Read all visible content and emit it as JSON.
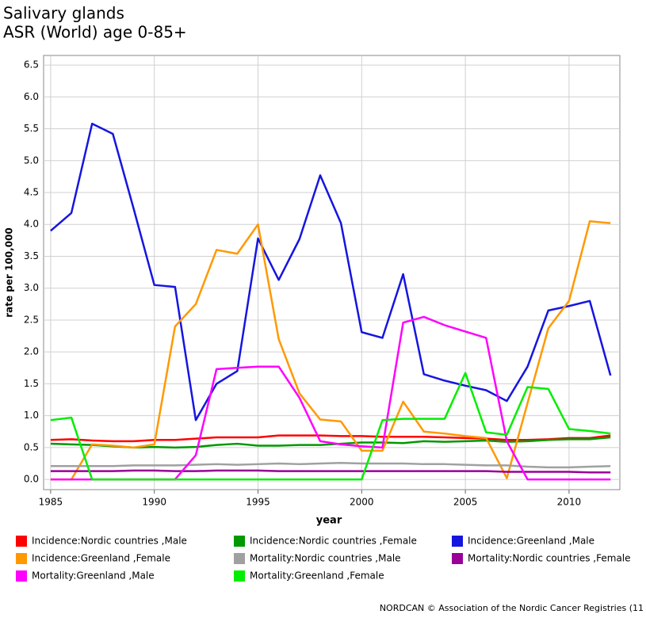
{
  "chart_data": {
    "type": "line",
    "title": "Salivary glands",
    "subtitle": "ASR (World) age 0-85+",
    "x_label": "year",
    "y_label": "rate per 100,000",
    "footer": "NORDCAN © Association of the Nordic Cancer Registries (11",
    "x": [
      1985,
      1986,
      1987,
      1988,
      1989,
      1990,
      1991,
      1992,
      1993,
      1994,
      1995,
      1996,
      1997,
      1998,
      1999,
      2000,
      2001,
      2002,
      2003,
      2004,
      2005,
      2006,
      2007,
      2008,
      2009,
      2010,
      2011,
      2012
    ],
    "xlim": [
      1984.66,
      2012.45
    ],
    "xticks": [
      1985,
      1990,
      1995,
      2000,
      2005,
      2010
    ],
    "ylim": [
      -0.16,
      6.65
    ],
    "yticks": [
      {
        "value": 0,
        "label": "0.0"
      },
      0.5,
      {
        "value": 1,
        "label": "1.0"
      },
      1.5,
      {
        "value": 2,
        "label": "2.0"
      },
      2.5,
      {
        "value": 3,
        "label": "3.0"
      },
      3.5,
      {
        "value": 4,
        "label": "4.0"
      },
      4.5,
      {
        "value": 5,
        "label": "5.0"
      },
      5.5,
      {
        "value": 6,
        "label": "6.0"
      },
      6.5
    ],
    "grid": true,
    "legend": "bottom",
    "series": [
      {
        "name": "Incidence:Nordic countries ,Male",
        "color": "#ff0000",
        "values": [
          0.62,
          0.63,
          0.61,
          0.6,
          0.6,
          0.62,
          0.62,
          0.64,
          0.66,
          0.66,
          0.66,
          0.69,
          0.69,
          0.69,
          0.68,
          0.68,
          0.67,
          0.67,
          0.67,
          0.66,
          0.65,
          0.64,
          0.62,
          0.62,
          0.63,
          0.65,
          0.65,
          0.69
        ]
      },
      {
        "name": "Incidence:Nordic countries ,Female",
        "color": "#009900",
        "values": [
          0.56,
          0.55,
          0.54,
          0.52,
          0.5,
          0.51,
          0.5,
          0.51,
          0.54,
          0.56,
          0.53,
          0.53,
          0.54,
          0.54,
          0.56,
          0.58,
          0.58,
          0.57,
          0.6,
          0.59,
          0.6,
          0.61,
          0.59,
          0.6,
          0.62,
          0.63,
          0.63,
          0.66
        ]
      },
      {
        "name": "Incidence:Greenland ,Male",
        "color": "#1515e0",
        "values": [
          3.9,
          4.18,
          5.58,
          5.42,
          4.25,
          3.05,
          3.02,
          0.93,
          1.5,
          1.7,
          3.78,
          3.13,
          3.77,
          4.77,
          4.02,
          2.31,
          2.22,
          3.22,
          1.65,
          1.55,
          1.47,
          1.4,
          1.23,
          1.77,
          2.65,
          2.72,
          2.8,
          1.63
        ]
      },
      {
        "name": "Incidence:Greenland ,Female",
        "color": "#ff9900",
        "values": [
          0,
          0,
          0.55,
          0.53,
          0.5,
          0.55,
          2.4,
          2.75,
          3.6,
          3.54,
          4.0,
          2.2,
          1.35,
          0.94,
          0.91,
          0.45,
          0.45,
          1.22,
          0.75,
          0.72,
          0.68,
          0.65,
          0.02,
          1.2,
          2.37,
          2.8,
          4.05,
          4.02
        ]
      },
      {
        "name": "Mortality:Nordic countries ,Male",
        "color": "#a0a0a0",
        "values": [
          0.21,
          0.21,
          0.21,
          0.21,
          0.22,
          0.22,
          0.22,
          0.23,
          0.24,
          0.23,
          0.24,
          0.25,
          0.24,
          0.25,
          0.26,
          0.25,
          0.25,
          0.25,
          0.24,
          0.24,
          0.23,
          0.22,
          0.22,
          0.2,
          0.19,
          0.19,
          0.2,
          0.21
        ]
      },
      {
        "name": "Mortality:Nordic countries ,Female",
        "color": "#990099",
        "values": [
          0.13,
          0.13,
          0.13,
          0.13,
          0.14,
          0.14,
          0.13,
          0.13,
          0.14,
          0.14,
          0.14,
          0.13,
          0.13,
          0.13,
          0.13,
          0.13,
          0.13,
          0.13,
          0.13,
          0.13,
          0.13,
          0.13,
          0.12,
          0.12,
          0.12,
          0.12,
          0.11,
          0.11
        ]
      },
      {
        "name": "Mortality:Greenland ,Male",
        "color": "#ff00ff",
        "values": [
          0,
          0,
          0,
          0,
          0,
          0,
          0,
          0.38,
          1.73,
          1.75,
          1.77,
          1.77,
          1.28,
          0.6,
          0.55,
          0.52,
          0.5,
          2.46,
          2.55,
          2.42,
          2.32,
          2.22,
          0.6,
          0,
          0,
          0,
          0,
          0
        ]
      },
      {
        "name": "Mortality:Greenland ,Female",
        "color": "#00ee00",
        "values": [
          0.93,
          0.97,
          0,
          0,
          0,
          0,
          0,
          0,
          0,
          0,
          0,
          0,
          0,
          0,
          0,
          0,
          0.93,
          0.95,
          0.95,
          0.95,
          1.67,
          0.74,
          0.7,
          1.45,
          1.42,
          0.79,
          0.76,
          0.72
        ]
      }
    ]
  }
}
